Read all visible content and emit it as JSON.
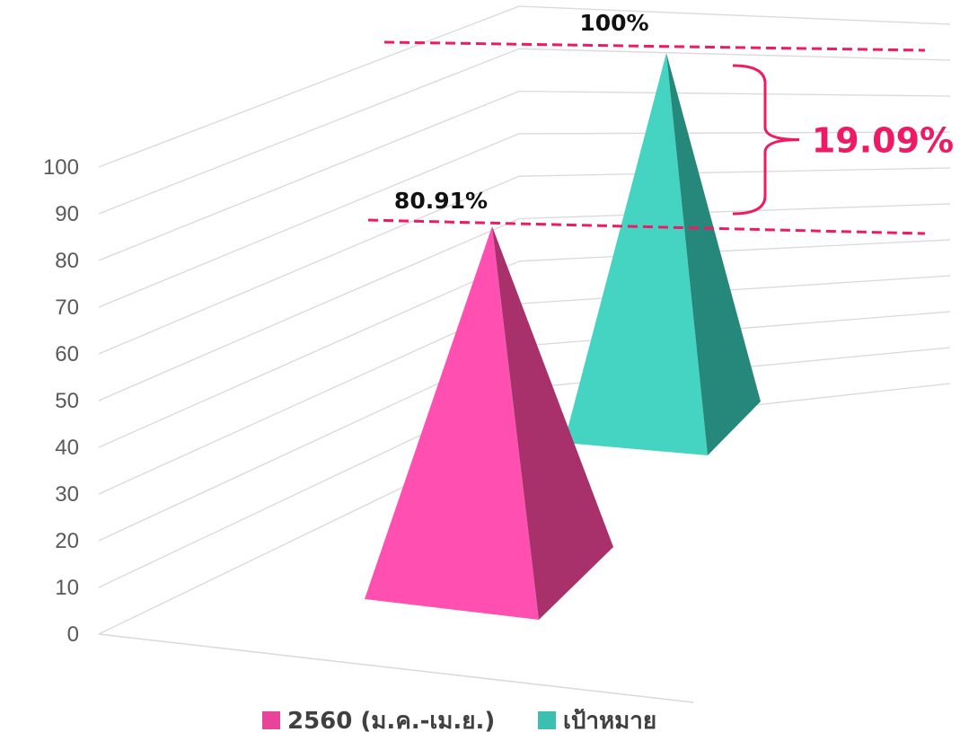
{
  "chart_data": {
    "type": "bar",
    "shape": "3d-pyramid",
    "categories": [
      ""
    ],
    "series": [
      {
        "name": "2560 (ม.ค.-เม.ย.)",
        "values": [
          80.91
        ],
        "label": "80.91%"
      },
      {
        "name": "เป้าหมาย",
        "values": [
          100
        ],
        "label": "100%"
      }
    ],
    "y_ticks": [
      0,
      10,
      20,
      30,
      40,
      50,
      60,
      70,
      80,
      90,
      100
    ],
    "ylim": [
      0,
      100
    ],
    "grid": true,
    "legend": "bottom",
    "annotation": {
      "gap_label": "19.09%",
      "from": 80.91,
      "to": 100
    },
    "colors": {
      "series_1_front": "#ff4fb0",
      "series_1_side": "#a8316c",
      "series_2_front": "#44d4c1",
      "series_2_side": "#26887b",
      "legend_1": "#e8449a",
      "legend_2": "#3abfb0",
      "annotation": "#ee1a63",
      "gridline": "#d9d9d9"
    }
  }
}
